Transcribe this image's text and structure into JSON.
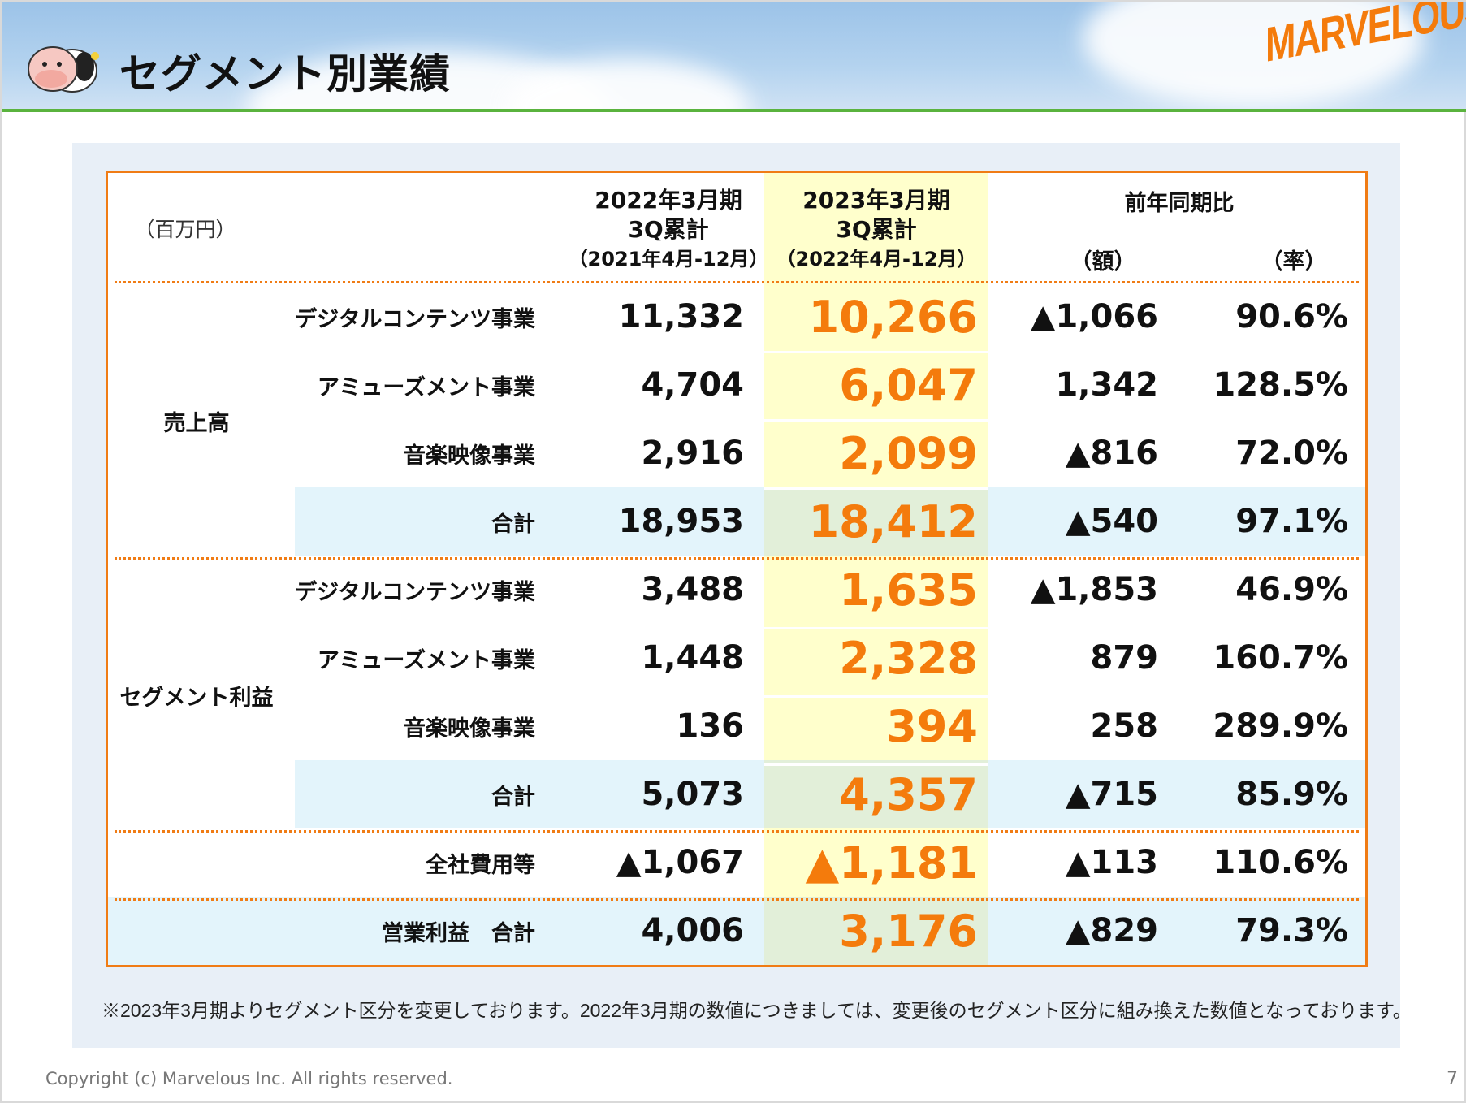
{
  "header": {
    "title": "セグメント別業績",
    "logo": "MARVELOUS!"
  },
  "table": {
    "unit": "（百万円）",
    "col_prev": [
      "2022年3月期",
      "3Q累計",
      "（2021年4月-12月）"
    ],
    "col_curr": [
      "2023年3月期",
      "3Q累計",
      "（2022年4月-12月）"
    ],
    "col_yoy": "前年同期比",
    "col_amount": "（額）",
    "col_rate": "（率）",
    "group_sales": "売上高",
    "group_profit": "セグメント利益",
    "rows": [
      {
        "label": "デジタルコンテンツ事業",
        "prev": "11,332",
        "curr": "10,266",
        "amount": "▲1,066",
        "rate": "90.6%"
      },
      {
        "label": "アミューズメント事業",
        "prev": "4,704",
        "curr": "6,047",
        "amount": "1,342",
        "rate": "128.5%"
      },
      {
        "label": "音楽映像事業",
        "prev": "2,916",
        "curr": "2,099",
        "amount": "▲816",
        "rate": "72.0%"
      },
      {
        "label": "合計",
        "prev": "18,953",
        "curr": "18,412",
        "amount": "▲540",
        "rate": "97.1%",
        "total": true
      },
      {
        "label": "デジタルコンテンツ事業",
        "prev": "3,488",
        "curr": "1,635",
        "amount": "▲1,853",
        "rate": "46.9%"
      },
      {
        "label": "アミューズメント事業",
        "prev": "1,448",
        "curr": "2,328",
        "amount": "879",
        "rate": "160.7%"
      },
      {
        "label": "音楽映像事業",
        "prev": "136",
        "curr": "394",
        "amount": "258",
        "rate": "289.9%"
      },
      {
        "label": "合計",
        "prev": "5,073",
        "curr": "4,357",
        "amount": "▲715",
        "rate": "85.9%",
        "total": true
      },
      {
        "label": "全社費用等",
        "prev": "▲1,067",
        "curr": "▲1,181",
        "amount": "▲113",
        "rate": "110.6%"
      },
      {
        "label": "営業利益　合計",
        "prev": "4,006",
        "curr": "3,176",
        "amount": "▲829",
        "rate": "79.3%",
        "total": true,
        "full": true
      }
    ]
  },
  "footnote": "※2023年3月期よりセグメント区分を変更しております。2022年3月期の数値につきましては、変更後のセグメント区分に組み換えた数値となっております。",
  "footer": {
    "copyright": "Copyright (c) Marvelous Inc. All rights reserved.",
    "page": "7"
  },
  "colors": {
    "accent": "#f07c15",
    "green": "#5ab33e",
    "total_bg": "#e3f4fb",
    "highlight": "#ffffcc",
    "highlight_total": "#e2efd9"
  }
}
